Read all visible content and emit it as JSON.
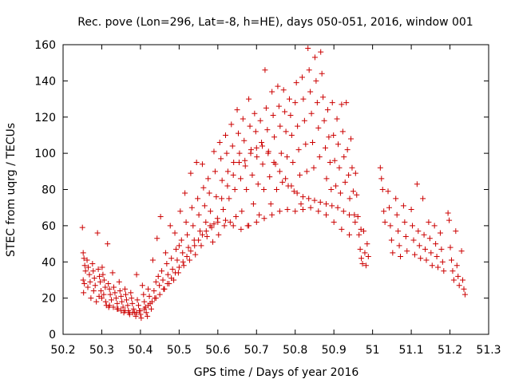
{
  "chart_data": {
    "type": "scatter",
    "title": "Rec. pove (Lon=296, Lat=-8, h=HE), days 050-051, 2016, window 001",
    "xlabel": "GPS time / Days of year 2016",
    "ylabel": "STEC from uqrg / TECUs",
    "xlim": [
      50.2,
      51.3
    ],
    "ylim": [
      0,
      160
    ],
    "xticks": [
      "50.2",
      "50.3",
      "50.4",
      "50.5",
      "50.6",
      "50.7",
      "50.8",
      "50.9",
      "51",
      "51.1",
      "51.2",
      "51.3"
    ],
    "yticks": [
      "0",
      "20",
      "40",
      "60",
      "80",
      "100",
      "120",
      "140",
      "160"
    ],
    "grid": false,
    "legend": "none",
    "marker": "plus",
    "color": "#cc0000",
    "points": [
      [
        50.25,
        59
      ],
      [
        50.252,
        45
      ],
      [
        50.254,
        42
      ],
      [
        50.256,
        38
      ],
      [
        50.258,
        35
      ],
      [
        50.252,
        30
      ],
      [
        50.255,
        28
      ],
      [
        50.253,
        23
      ],
      [
        50.262,
        41
      ],
      [
        50.265,
        37
      ],
      [
        50.268,
        33
      ],
      [
        50.27,
        29
      ],
      [
        50.264,
        26
      ],
      [
        50.272,
        20
      ],
      [
        50.276,
        39
      ],
      [
        50.278,
        35
      ],
      [
        50.281,
        31
      ],
      [
        50.283,
        27
      ],
      [
        50.279,
        24
      ],
      [
        50.286,
        18
      ],
      [
        50.289,
        56
      ],
      [
        50.291,
        36
      ],
      [
        50.294,
        32
      ],
      [
        50.296,
        29
      ],
      [
        50.298,
        24
      ],
      [
        50.293,
        21
      ],
      [
        50.301,
        37
      ],
      [
        50.303,
        33
      ],
      [
        50.306,
        30
      ],
      [
        50.309,
        26
      ],
      [
        50.305,
        22
      ],
      [
        50.312,
        16
      ],
      [
        50.315,
        50
      ],
      [
        50.317,
        28
      ],
      [
        50.32,
        25
      ],
      [
        50.322,
        22
      ],
      [
        50.325,
        19
      ],
      [
        50.318,
        15
      ],
      [
        50.328,
        34
      ],
      [
        50.331,
        26
      ],
      [
        50.334,
        23
      ],
      [
        50.337,
        20
      ],
      [
        50.34,
        17
      ],
      [
        50.342,
        14
      ],
      [
        50.345,
        29
      ],
      [
        50.347,
        24
      ],
      [
        50.35,
        21
      ],
      [
        50.352,
        18
      ],
      [
        50.355,
        15
      ],
      [
        50.357,
        12
      ],
      [
        50.36,
        25
      ],
      [
        50.362,
        22
      ],
      [
        50.364,
        19
      ],
      [
        50.367,
        16
      ],
      [
        50.369,
        13
      ],
      [
        50.372,
        11
      ],
      [
        50.375,
        23
      ],
      [
        50.377,
        20
      ],
      [
        50.379,
        17
      ],
      [
        50.382,
        14
      ],
      [
        50.385,
        12
      ],
      [
        50.388,
        10
      ],
      [
        50.39,
        33
      ],
      [
        50.392,
        19
      ],
      [
        50.395,
        16
      ],
      [
        50.397,
        13
      ],
      [
        50.4,
        11
      ],
      [
        50.402,
        9
      ],
      [
        50.405,
        27
      ],
      [
        50.408,
        22
      ],
      [
        50.41,
        18
      ],
      [
        50.413,
        15
      ],
      [
        50.415,
        12
      ],
      [
        50.418,
        10
      ],
      [
        50.42,
        25
      ],
      [
        50.423,
        21
      ],
      [
        50.425,
        17
      ],
      [
        50.428,
        14
      ],
      [
        50.432,
        41
      ],
      [
        50.435,
        24
      ],
      [
        50.437,
        20
      ],
      [
        50.44,
        29
      ],
      [
        50.443,
        53
      ],
      [
        50.446,
        32
      ],
      [
        50.449,
        27
      ],
      [
        50.452,
        65
      ],
      [
        50.455,
        35
      ],
      [
        50.458,
        30
      ],
      [
        50.462,
        25
      ],
      [
        50.465,
        45
      ],
      [
        50.468,
        39
      ],
      [
        50.471,
        33
      ],
      [
        50.474,
        28
      ],
      [
        50.477,
        60
      ],
      [
        50.48,
        42
      ],
      [
        50.483,
        36
      ],
      [
        50.486,
        30
      ],
      [
        50.489,
        56
      ],
      [
        50.492,
        47
      ],
      [
        50.495,
        41
      ],
      [
        50.498,
        34
      ],
      [
        50.5,
        49
      ],
      [
        50.503,
        68
      ],
      [
        50.506,
        52
      ],
      [
        50.509,
        45
      ],
      [
        50.512,
        38
      ],
      [
        50.515,
        78
      ],
      [
        50.518,
        62
      ],
      [
        50.521,
        55
      ],
      [
        50.524,
        48
      ],
      [
        50.527,
        41
      ],
      [
        50.53,
        89
      ],
      [
        50.533,
        70
      ],
      [
        50.536,
        60
      ],
      [
        50.539,
        52
      ],
      [
        50.542,
        44
      ],
      [
        50.545,
        95
      ],
      [
        50.548,
        75
      ],
      [
        50.551,
        66
      ],
      [
        50.554,
        57
      ],
      [
        50.557,
        49
      ],
      [
        50.56,
        94
      ],
      [
        50.563,
        81
      ],
      [
        50.566,
        71
      ],
      [
        50.569,
        62
      ],
      [
        50.572,
        54
      ],
      [
        50.575,
        86
      ],
      [
        50.578,
        78
      ],
      [
        50.581,
        68
      ],
      [
        50.584,
        59
      ],
      [
        50.587,
        51
      ],
      [
        50.59,
        101
      ],
      [
        50.593,
        90
      ],
      [
        50.596,
        76
      ],
      [
        50.599,
        64
      ],
      [
        50.602,
        55
      ],
      [
        50.605,
        106
      ],
      [
        50.608,
        97
      ],
      [
        50.611,
        85
      ],
      [
        50.614,
        69
      ],
      [
        50.617,
        60
      ],
      [
        50.62,
        110
      ],
      [
        50.623,
        100
      ],
      [
        50.626,
        90
      ],
      [
        50.629,
        75
      ],
      [
        50.632,
        62
      ],
      [
        50.635,
        116
      ],
      [
        50.638,
        104
      ],
      [
        50.641,
        95
      ],
      [
        50.644,
        80
      ],
      [
        50.647,
        65
      ],
      [
        50.65,
        124
      ],
      [
        50.653,
        111
      ],
      [
        50.656,
        100
      ],
      [
        50.659,
        86
      ],
      [
        50.662,
        68
      ],
      [
        50.665,
        119
      ],
      [
        50.668,
        107
      ],
      [
        50.671,
        93
      ],
      [
        50.674,
        80
      ],
      [
        50.677,
        60
      ],
      [
        50.68,
        130
      ],
      [
        50.683,
        115
      ],
      [
        50.686,
        102
      ],
      [
        50.689,
        88
      ],
      [
        50.692,
        72
      ],
      [
        50.695,
        122
      ],
      [
        50.698,
        112
      ],
      [
        50.701,
        98
      ],
      [
        50.704,
        83
      ],
      [
        50.707,
        66
      ],
      [
        50.71,
        118
      ],
      [
        50.713,
        106
      ],
      [
        50.716,
        94
      ],
      [
        50.719,
        80
      ],
      [
        50.722,
        146
      ],
      [
        50.725,
        125
      ],
      [
        50.728,
        113
      ],
      [
        50.731,
        101
      ],
      [
        50.734,
        87
      ],
      [
        50.737,
        72
      ],
      [
        50.74,
        134
      ],
      [
        50.743,
        121
      ],
      [
        50.746,
        109
      ],
      [
        50.749,
        94
      ],
      [
        50.752,
        80
      ],
      [
        50.755,
        137
      ],
      [
        50.758,
        126
      ],
      [
        50.761,
        115
      ],
      [
        50.764,
        100
      ],
      [
        50.767,
        84
      ],
      [
        50.77,
        135
      ],
      [
        50.773,
        123
      ],
      [
        50.776,
        112
      ],
      [
        50.779,
        98
      ],
      [
        50.782,
        82
      ],
      [
        50.785,
        130
      ],
      [
        50.788,
        121
      ],
      [
        50.791,
        110
      ],
      [
        50.794,
        95
      ],
      [
        50.797,
        79
      ],
      [
        50.8,
        128
      ],
      [
        50.803,
        139
      ],
      [
        50.806,
        115
      ],
      [
        50.809,
        102
      ],
      [
        50.812,
        88
      ],
      [
        50.815,
        72
      ],
      [
        50.818,
        142
      ],
      [
        50.821,
        130
      ],
      [
        50.824,
        118
      ],
      [
        50.827,
        105
      ],
      [
        50.83,
        90
      ],
      [
        50.833,
        158
      ],
      [
        50.836,
        146
      ],
      [
        50.839,
        134
      ],
      [
        50.842,
        122
      ],
      [
        50.845,
        106
      ],
      [
        50.848,
        92
      ],
      [
        50.851,
        153
      ],
      [
        50.854,
        140
      ],
      [
        50.857,
        128
      ],
      [
        50.86,
        114
      ],
      [
        50.863,
        98
      ],
      [
        50.866,
        156
      ],
      [
        50.869,
        144
      ],
      [
        50.872,
        131
      ],
      [
        50.875,
        118
      ],
      [
        50.878,
        103
      ],
      [
        50.881,
        86
      ],
      [
        50.884,
        124
      ],
      [
        50.887,
        109
      ],
      [
        50.89,
        95
      ],
      [
        50.893,
        80
      ],
      [
        50.896,
        128
      ],
      [
        50.899,
        110
      ],
      [
        50.902,
        96
      ],
      [
        50.905,
        82
      ],
      [
        50.908,
        119
      ],
      [
        50.911,
        105
      ],
      [
        50.914,
        92
      ],
      [
        50.917,
        78
      ],
      [
        50.92,
        127
      ],
      [
        50.923,
        112
      ],
      [
        50.926,
        98
      ],
      [
        50.929,
        84
      ],
      [
        50.932,
        128
      ],
      [
        50.935,
        102
      ],
      [
        50.938,
        88
      ],
      [
        50.941,
        75
      ],
      [
        50.944,
        108
      ],
      [
        50.947,
        92
      ],
      [
        50.95,
        79
      ],
      [
        50.953,
        66
      ],
      [
        50.956,
        89
      ],
      [
        50.959,
        77
      ],
      [
        50.962,
        65
      ],
      [
        50.965,
        55
      ],
      [
        50.968,
        47
      ],
      [
        50.971,
        42
      ],
      [
        50.974,
        39
      ],
      [
        50.977,
        57
      ],
      [
        50.98,
        45
      ],
      [
        50.983,
        38
      ],
      [
        50.986,
        50
      ],
      [
        50.989,
        43
      ],
      [
        51.02,
        92
      ],
      [
        51.023,
        86
      ],
      [
        51.026,
        80
      ],
      [
        51.029,
        68
      ],
      [
        51.032,
        62
      ],
      [
        51.04,
        79
      ],
      [
        51.043,
        70
      ],
      [
        51.046,
        60
      ],
      [
        51.049,
        52
      ],
      [
        51.052,
        45
      ],
      [
        51.06,
        75
      ],
      [
        51.063,
        66
      ],
      [
        51.066,
        57
      ],
      [
        51.069,
        49
      ],
      [
        51.072,
        43
      ],
      [
        51.08,
        71
      ],
      [
        51.083,
        62
      ],
      [
        51.086,
        54
      ],
      [
        51.089,
        46
      ],
      [
        51.1,
        69
      ],
      [
        51.103,
        60
      ],
      [
        51.106,
        52
      ],
      [
        51.109,
        44
      ],
      [
        51.115,
        83
      ],
      [
        51.118,
        57
      ],
      [
        51.121,
        49
      ],
      [
        51.124,
        42
      ],
      [
        51.13,
        75
      ],
      [
        51.133,
        55
      ],
      [
        51.136,
        47
      ],
      [
        51.139,
        41
      ],
      [
        51.145,
        62
      ],
      [
        51.148,
        53
      ],
      [
        51.151,
        45
      ],
      [
        51.154,
        38
      ],
      [
        51.16,
        60
      ],
      [
        51.163,
        50
      ],
      [
        51.166,
        43
      ],
      [
        51.169,
        37
      ],
      [
        51.175,
        56
      ],
      [
        51.178,
        47
      ],
      [
        51.181,
        40
      ],
      [
        51.184,
        35
      ],
      [
        51.195,
        67
      ],
      [
        51.198,
        63
      ],
      [
        51.201,
        48
      ],
      [
        51.204,
        41
      ],
      [
        51.207,
        35
      ],
      [
        51.21,
        30
      ],
      [
        51.215,
        57
      ],
      [
        51.218,
        38
      ],
      [
        51.221,
        32
      ],
      [
        51.224,
        27
      ],
      [
        51.23,
        46
      ],
      [
        51.233,
        30
      ],
      [
        51.236,
        25
      ],
      [
        51.239,
        22
      ],
      [
        50.61,
        75
      ],
      [
        50.625,
        82
      ],
      [
        50.64,
        88
      ],
      [
        50.655,
        95
      ],
      [
        50.67,
        96
      ],
      [
        50.685,
        100
      ],
      [
        50.7,
        103
      ],
      [
        50.715,
        104
      ],
      [
        50.73,
        100
      ],
      [
        50.745,
        95
      ],
      [
        50.76,
        90
      ],
      [
        50.775,
        86
      ],
      [
        50.79,
        82
      ],
      [
        50.805,
        78
      ],
      [
        50.82,
        76
      ],
      [
        50.835,
        75
      ],
      [
        50.85,
        74
      ],
      [
        50.865,
        73
      ],
      [
        50.88,
        72
      ],
      [
        50.895,
        71
      ],
      [
        50.91,
        70
      ],
      [
        50.925,
        68
      ],
      [
        50.94,
        66
      ],
      [
        50.955,
        62
      ],
      [
        50.97,
        58
      ],
      [
        50.6,
        62
      ],
      [
        50.62,
        63
      ],
      [
        50.64,
        60
      ],
      [
        50.66,
        58
      ],
      [
        50.68,
        60
      ],
      [
        50.7,
        62
      ],
      [
        50.72,
        64
      ],
      [
        50.74,
        66
      ],
      [
        50.76,
        68
      ],
      [
        50.78,
        69
      ],
      [
        50.8,
        68
      ],
      [
        50.82,
        69
      ],
      [
        50.84,
        70
      ],
      [
        50.86,
        68
      ],
      [
        50.88,
        66
      ],
      [
        50.9,
        62
      ],
      [
        50.92,
        58
      ],
      [
        50.94,
        55
      ],
      [
        50.45,
        22
      ],
      [
        50.46,
        25
      ],
      [
        50.47,
        28
      ],
      [
        50.48,
        31
      ],
      [
        50.49,
        34
      ],
      [
        50.5,
        37
      ],
      [
        50.51,
        40
      ],
      [
        50.52,
        43
      ],
      [
        50.53,
        46
      ],
      [
        50.54,
        49
      ],
      [
        50.55,
        52
      ],
      [
        50.56,
        55
      ],
      [
        50.57,
        57
      ],
      [
        50.58,
        60
      ],
      [
        50.59,
        61
      ],
      [
        50.3,
        20
      ],
      [
        50.31,
        18
      ],
      [
        50.32,
        16
      ],
      [
        50.33,
        15
      ],
      [
        50.34,
        14
      ],
      [
        50.35,
        13
      ],
      [
        50.36,
        13
      ],
      [
        50.37,
        12
      ],
      [
        50.38,
        12
      ],
      [
        50.39,
        12
      ],
      [
        50.4,
        13
      ],
      [
        50.41,
        14
      ],
      [
        50.42,
        16
      ],
      [
        50.43,
        18
      ],
      [
        50.44,
        20
      ]
    ]
  }
}
